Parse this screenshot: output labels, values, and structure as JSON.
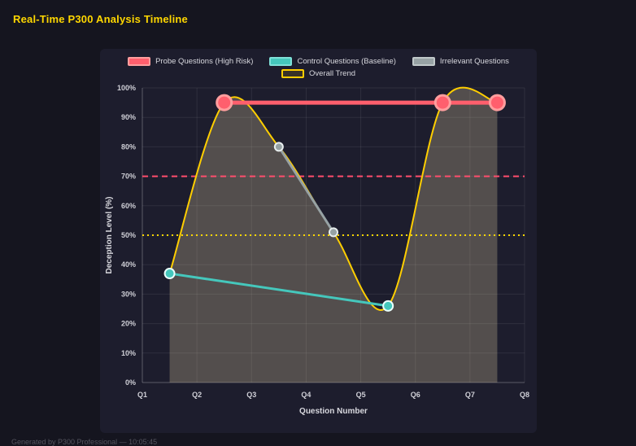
{
  "page": {
    "title": "Real-Time P300 Analysis Timeline",
    "footer": "Generated by P300 Professional — 10:05:45"
  },
  "colors": {
    "background": "#15151f",
    "panel": "#1d1d2d",
    "title": "#ffd700",
    "grid": "rgba(255,255,255,0.08)",
    "axis": "rgba(255,255,255,0.22)",
    "tick_text": "#cfcfd6"
  },
  "chart_data": {
    "type": "line",
    "title": "",
    "xlabel": "Question Number",
    "ylabel": "Deception Level (%)",
    "x_tick_labels": [
      "Q1",
      "Q2",
      "Q3",
      "Q4",
      "Q5",
      "Q6",
      "Q7",
      "Q8"
    ],
    "x_tick_values": [
      1,
      2,
      3,
      4,
      5,
      6,
      7,
      8
    ],
    "xlim": [
      1,
      8
    ],
    "ylim": [
      0,
      100
    ],
    "y_tick_step": 10,
    "y_tick_suffix": "%",
    "grid": true,
    "legend_position": "top",
    "legend_rows": [
      [
        0,
        1,
        2
      ],
      [
        3
      ]
    ],
    "series": [
      {
        "name": "Probe Questions (High Risk)",
        "color": "#ff5f6d",
        "point_border": "#ff9e9e",
        "x": [
          2.5,
          6.5,
          7.5
        ],
        "values": [
          95,
          95,
          95
        ],
        "line_width": 5,
        "point_radius": 9,
        "point_border_width": 3,
        "smooth": false,
        "legend_fill": "#ff5f6d",
        "legend_border": "#ff9e9e"
      },
      {
        "name": "Control Questions (Baseline)",
        "color": "#45c7bc",
        "point_border": "#eafffd",
        "x": [
          1.5,
          5.5
        ],
        "values": [
          37,
          26
        ],
        "line_width": 3,
        "point_radius": 6,
        "point_border_width": 2,
        "smooth": false,
        "legend_fill": "#45c7bc",
        "legend_border": "#7fe0d8"
      },
      {
        "name": "Irrelevant Questions",
        "color": "#97a2a4",
        "point_border": "#e8eeee",
        "x": [
          3.5,
          4.5
        ],
        "values": [
          80,
          51
        ],
        "line_width": 3,
        "point_radius": 5,
        "point_border_width": 2,
        "smooth": false,
        "legend_fill": "#97a2a4",
        "legend_border": "#c0c8c9"
      },
      {
        "name": "Overall Trend",
        "color": "#ffce00",
        "x": [
          1.5,
          2.5,
          3.5,
          4.5,
          5.5,
          6.5,
          7.5
        ],
        "values": [
          37,
          95,
          80,
          51,
          26,
          95,
          95
        ],
        "line_width": 2,
        "point_radius": 0,
        "smooth": true,
        "fill": true,
        "fill_color": "rgba(225,210,160,0.28)",
        "legend_fill": "rgba(255,206,0,0.12)",
        "legend_border": "#ffce00"
      }
    ],
    "annotations": [
      {
        "type": "hline",
        "y": 70,
        "color": "#ff4d6d",
        "style": "dashed"
      },
      {
        "type": "hline",
        "y": 50,
        "color": "#ffd700",
        "style": "dotted"
      }
    ]
  }
}
